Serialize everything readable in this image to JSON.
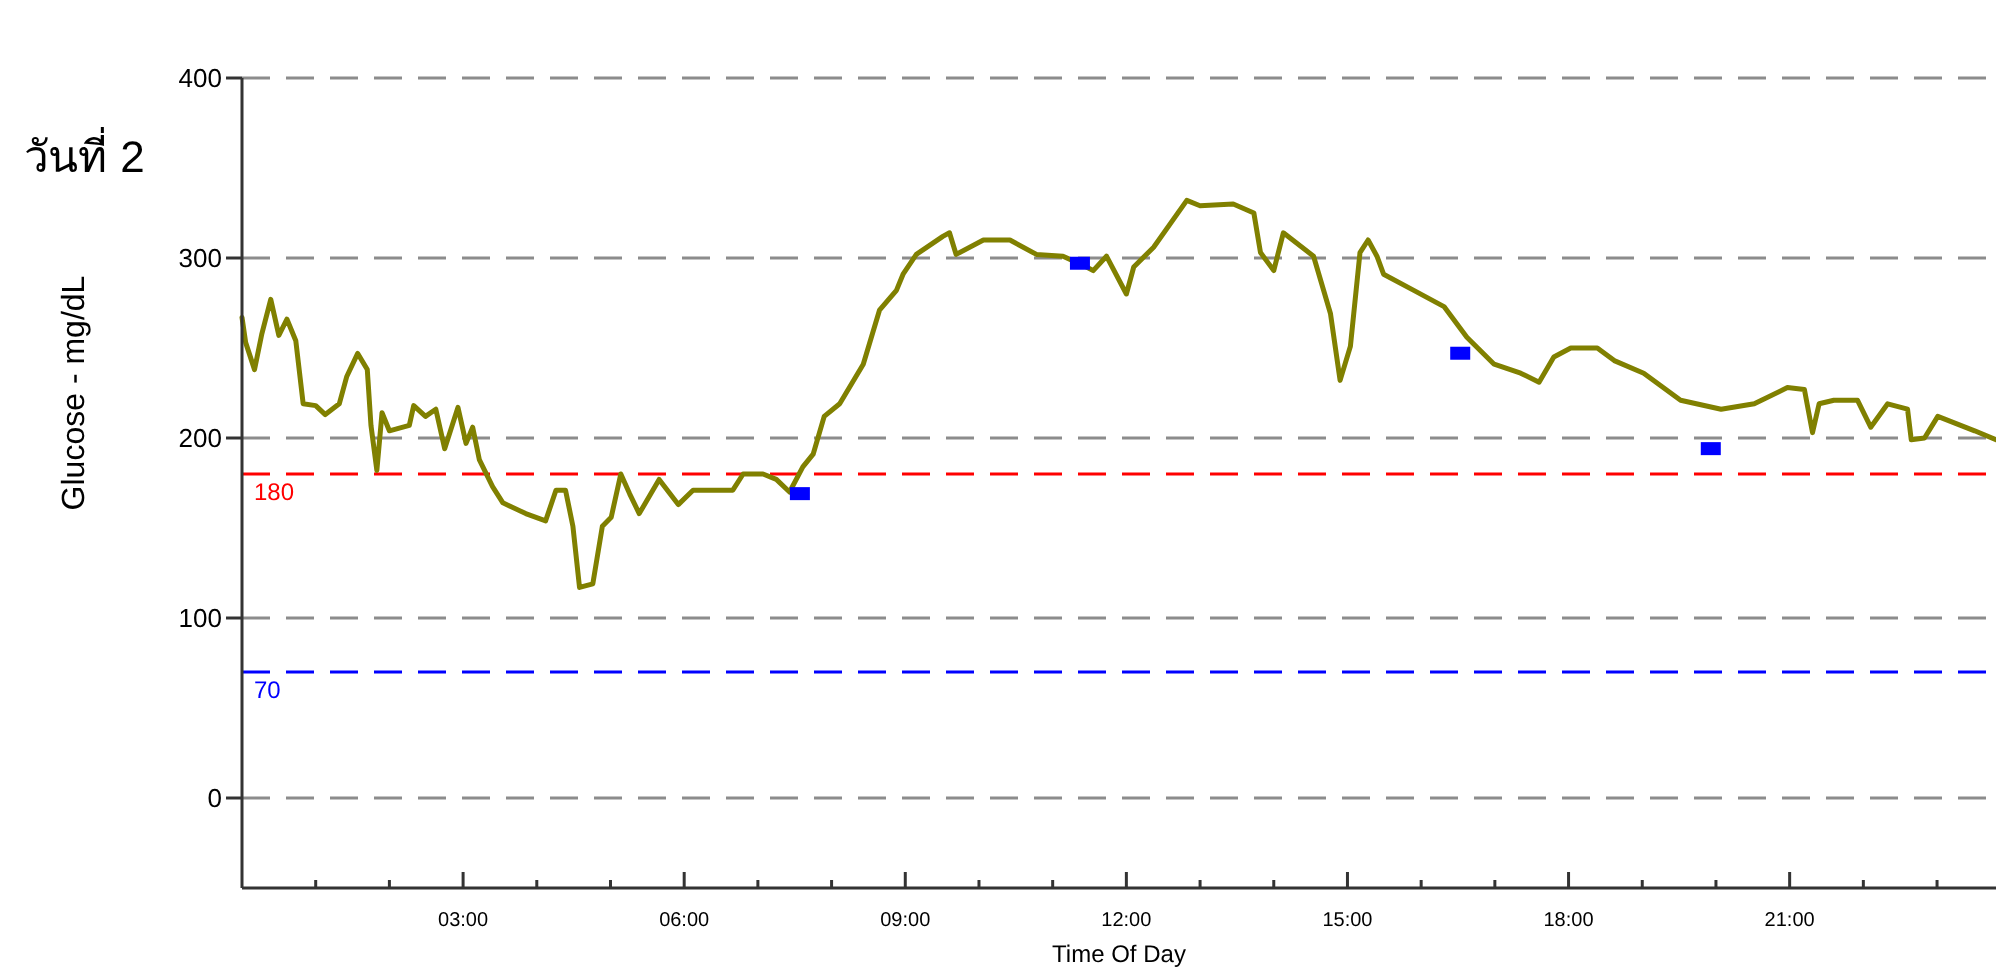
{
  "chart_data": {
    "type": "line",
    "title": "วันที่ 2",
    "xlabel": "Time Of Day",
    "ylabel": "Glucose - mg/dL",
    "xlim": [
      0,
      23.8
    ],
    "ylim": [
      -50,
      400
    ],
    "yticks": [
      0,
      100,
      200,
      300,
      400
    ],
    "xticks": [
      {
        "value": 1,
        "label": null
      },
      {
        "value": 2,
        "label": null
      },
      {
        "value": 3,
        "label": "03:00"
      },
      {
        "value": 4,
        "label": null
      },
      {
        "value": 5,
        "label": null
      },
      {
        "value": 6,
        "label": "06:00"
      },
      {
        "value": 7,
        "label": null
      },
      {
        "value": 8,
        "label": null
      },
      {
        "value": 9,
        "label": "09:00"
      },
      {
        "value": 10,
        "label": null
      },
      {
        "value": 11,
        "label": null
      },
      {
        "value": 12,
        "label": "12:00"
      },
      {
        "value": 13,
        "label": null
      },
      {
        "value": 14,
        "label": null
      },
      {
        "value": 15,
        "label": "15:00"
      },
      {
        "value": 16,
        "label": null
      },
      {
        "value": 17,
        "label": null
      },
      {
        "value": 18,
        "label": "18:00"
      },
      {
        "value": 19,
        "label": null
      },
      {
        "value": 20,
        "label": null
      },
      {
        "value": 21,
        "label": "21:00"
      },
      {
        "value": 22,
        "label": null
      },
      {
        "value": 23,
        "label": null
      }
    ],
    "grid": "y",
    "line_style": "solid",
    "series": [
      {
        "type": "line",
        "color": "#808000",
        "marker": "none",
        "x": [
          0,
          0.05,
          0.17,
          0.27,
          0.39,
          0.5,
          0.61,
          0.73,
          0.83,
          1.0,
          1.13,
          1.32,
          1.42,
          1.57,
          1.7,
          1.75,
          1.83,
          1.9,
          2.0,
          2.27,
          2.33,
          2.49,
          2.63,
          2.75,
          2.93,
          3.04,
          3.13,
          3.22,
          3.4,
          3.54,
          3.85,
          4.12,
          4.26,
          4.39,
          4.49,
          4.58,
          4.76,
          4.89,
          5.01,
          5.14,
          5.26,
          5.39,
          5.66,
          5.92,
          6.12,
          6.66,
          6.8,
          7.07,
          7.25,
          7.43,
          7.61,
          7.75,
          7.9,
          8.11,
          8.43,
          8.65,
          8.88,
          8.97,
          9.15,
          9.51,
          9.6,
          9.69,
          10.06,
          10.42,
          10.78,
          11.14,
          11.46,
          11.55,
          11.73,
          12.0,
          12.1,
          12.37,
          12.82,
          13.0,
          13.45,
          13.73,
          13.82,
          14.0,
          14.13,
          14.54,
          14.77,
          14.9,
          15.04,
          15.17,
          15.28,
          15.4,
          15.49,
          15.9,
          16.31,
          16.62,
          16.99,
          17.35,
          17.6,
          17.8,
          18.03,
          18.39,
          18.62,
          19.02,
          19.52,
          20.07,
          20.52,
          20.97,
          21.2,
          21.31,
          21.4,
          21.6,
          21.92,
          22.1,
          22.33,
          22.6,
          22.65,
          22.83,
          23.01,
          23.51,
          23.8
        ],
        "values": [
          267,
          253,
          238,
          258,
          277,
          257,
          266,
          254,
          219,
          218,
          213,
          219,
          234,
          247,
          238,
          207,
          182,
          214,
          204,
          207,
          218,
          212,
          216,
          194,
          217,
          197,
          206,
          188,
          173,
          164,
          158,
          154,
          171,
          171,
          151,
          117,
          119,
          151,
          156,
          180,
          169,
          158,
          177,
          163,
          171,
          171,
          180,
          180,
          177,
          170,
          184,
          191,
          212,
          219,
          241,
          271,
          282,
          291,
          302,
          312,
          314,
          302,
          310,
          310,
          302,
          301,
          295,
          293,
          301,
          280,
          295,
          306,
          332,
          329,
          330,
          325,
          303,
          293,
          314,
          301,
          269,
          232,
          251,
          303,
          310,
          301,
          291,
          282,
          273,
          256,
          241,
          236,
          231,
          245,
          250,
          250,
          243,
          236,
          221,
          216,
          219,
          228,
          227,
          203,
          219,
          221,
          221,
          206,
          219,
          216,
          199,
          200,
          212,
          204,
          199
        ]
      },
      {
        "type": "scatter",
        "color": "#0000ff",
        "marker": "square",
        "x": [
          7.57,
          11.37,
          16.53,
          19.93
        ],
        "values": [
          169,
          297,
          247,
          194
        ]
      }
    ],
    "ref_lines": [
      {
        "axis": "y",
        "value": 180,
        "label": "180",
        "color": "#ff0000",
        "line_style": "dashed"
      },
      {
        "axis": "y",
        "value": 70,
        "label": "70",
        "color": "#0000ff",
        "line_style": "dashed"
      }
    ]
  }
}
